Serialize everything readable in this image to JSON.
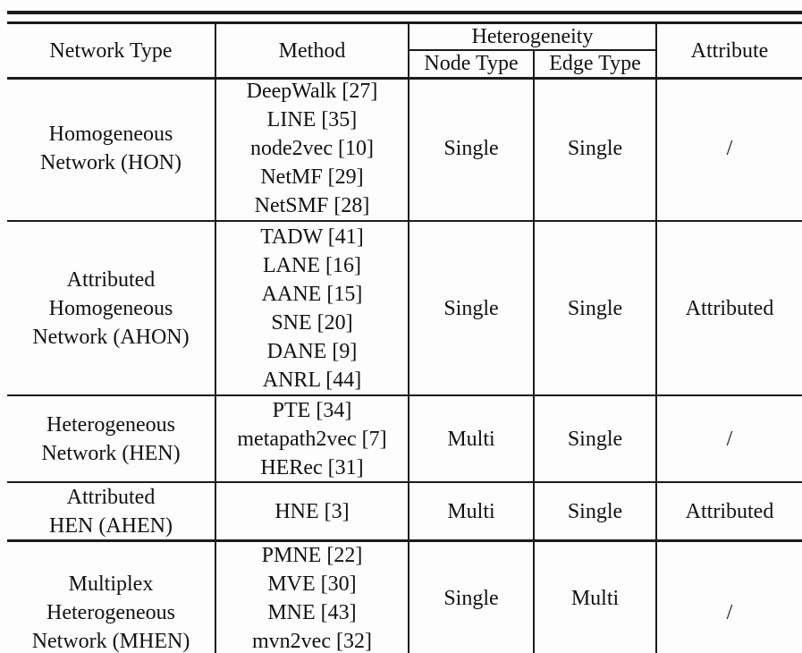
{
  "table": {
    "header": {
      "network_type": "Network Type",
      "method": "Method",
      "heterogeneity": "Heterogeneity",
      "node_type": "Node Type",
      "edge_type": "Edge Type",
      "attribute": "Attribute"
    },
    "rows": [
      {
        "network_type": [
          "Homogeneous",
          "Network (HON)"
        ],
        "methods": [
          "DeepWalk [27]",
          "LINE [35]",
          "node2vec [10]",
          "NetMF [29]",
          "NetSMF [28]"
        ],
        "node_type": "Single",
        "edge_type": "Single",
        "attribute": "/"
      },
      {
        "network_type": [
          "Attributed",
          "Homogeneous",
          "Network (AHON)"
        ],
        "methods": [
          "TADW [41]",
          "LANE [16]",
          "AANE [15]",
          "SNE [20]",
          "DANE [9]",
          "ANRL [44]"
        ],
        "node_type": "Single",
        "edge_type": "Single",
        "attribute": "Attributed"
      },
      {
        "network_type": [
          "Heterogeneous",
          "Network (HEN)"
        ],
        "methods": [
          "PTE [34]",
          "metapath2vec [7]",
          "HERec [31]"
        ],
        "node_type": "Multi",
        "edge_type": "Single",
        "attribute": "/"
      },
      {
        "network_type": [
          "Attributed",
          "HEN (AHEN)"
        ],
        "methods": [
          "HNE [3]"
        ],
        "node_type": "Multi",
        "edge_type": "Single",
        "attribute": "Attributed"
      },
      {
        "network_type": [
          "Multiplex",
          "Heterogeneous",
          "Network (MHEN)"
        ],
        "methods": [
          "PMNE [22]",
          "MVE [30]",
          "MNE [43]",
          "mvn2vec [32]"
        ],
        "node_type": "Single",
        "edge_type": "Multi",
        "attribute": "/"
      }
    ],
    "colors": {
      "rule": "#1c1c1c",
      "text": "#121212",
      "background": "#fdfdfd"
    }
  }
}
